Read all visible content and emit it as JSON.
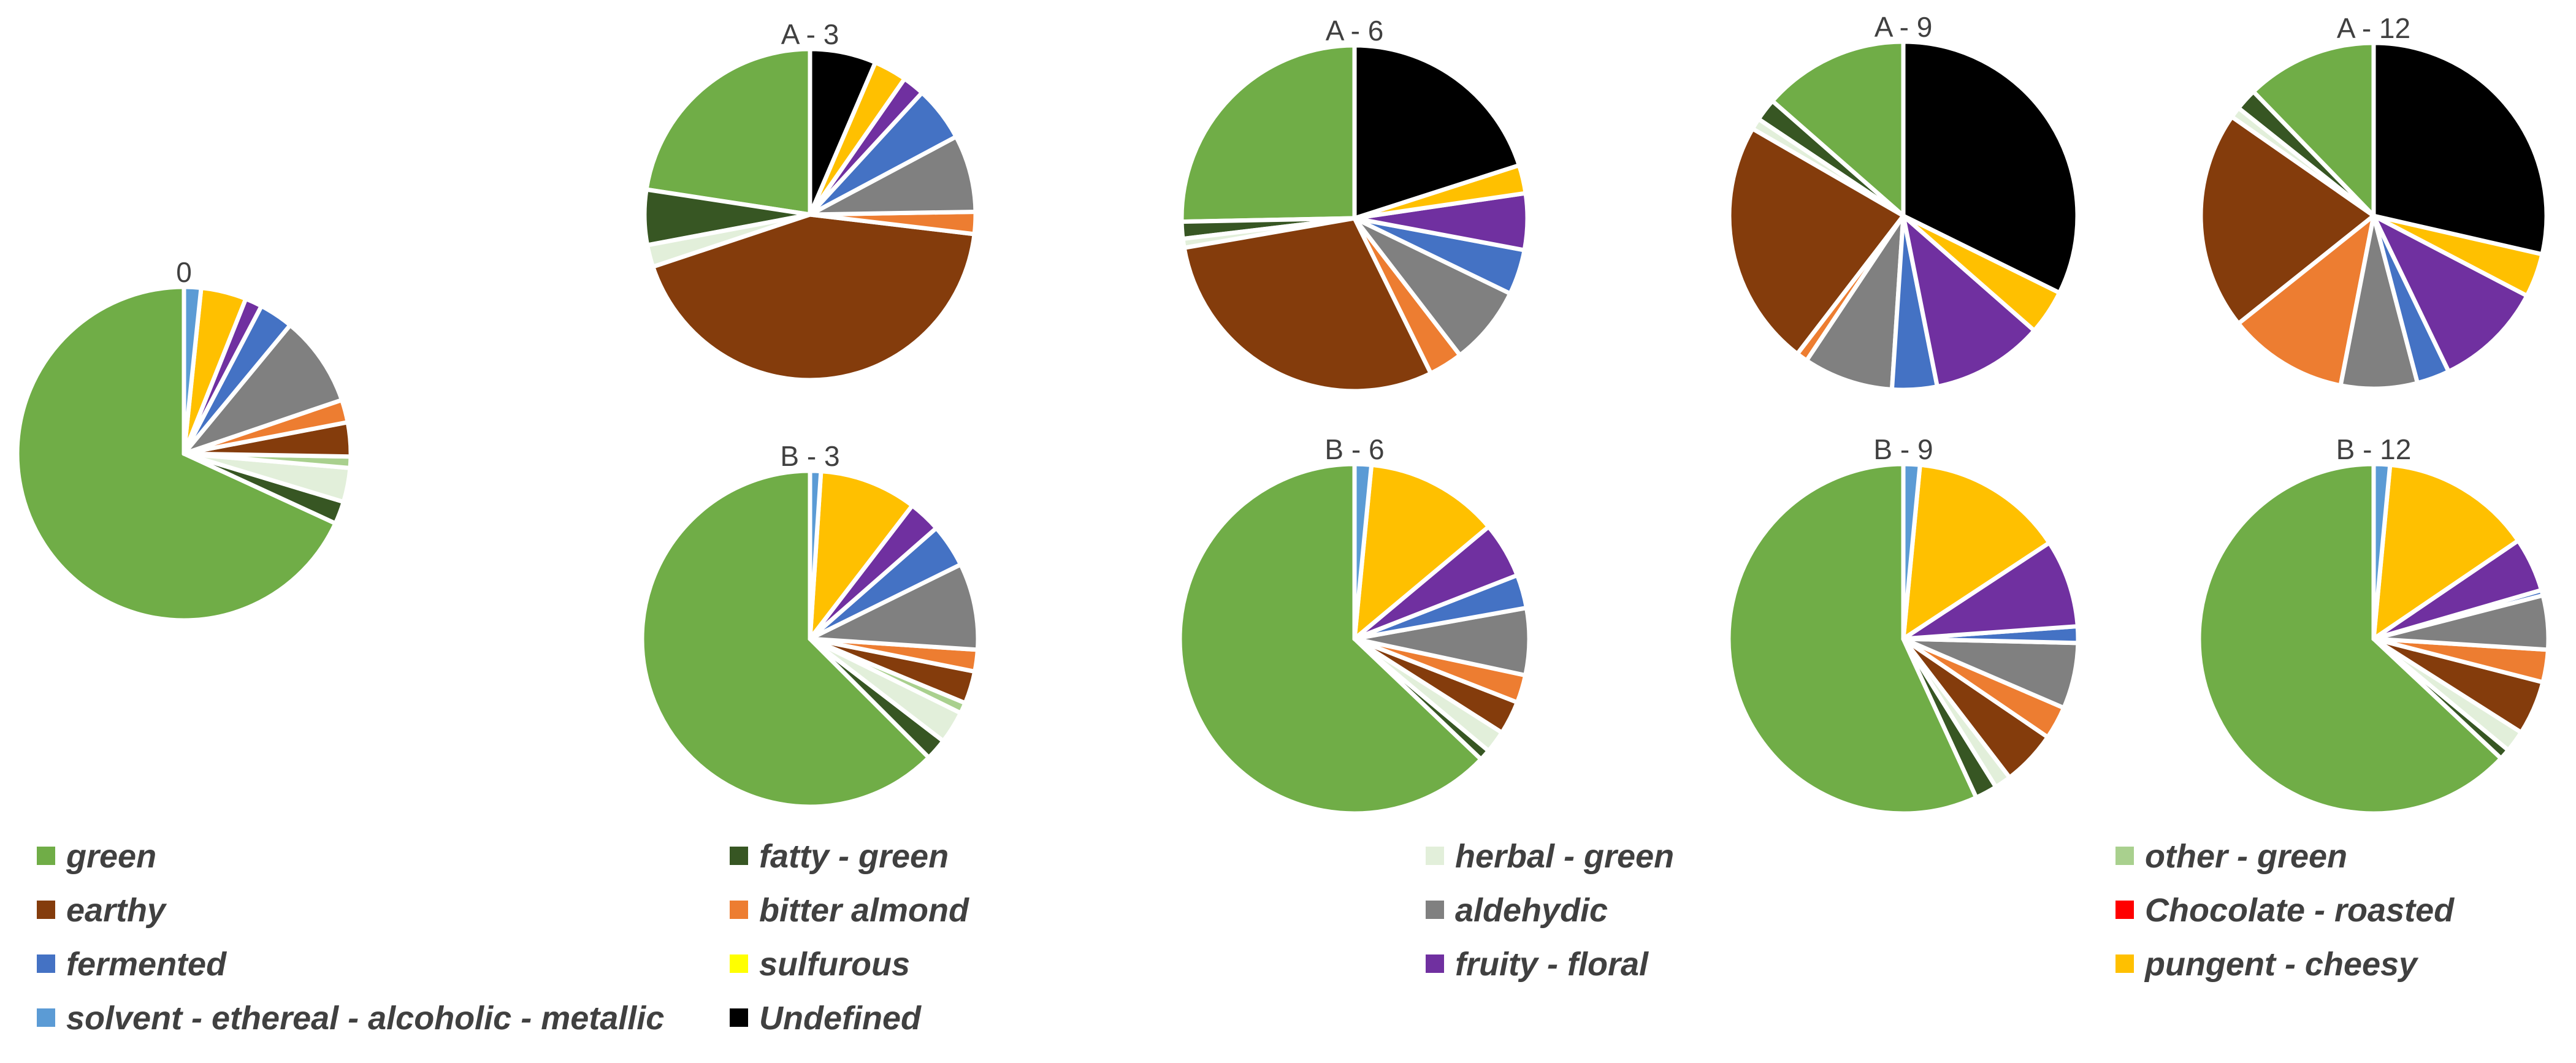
{
  "colors": {
    "green": "#70AD47",
    "fatty_green": "#375623",
    "herbal_green": "#E2EFDA",
    "other_green": "#A9D08E",
    "earthy": "#843C0C",
    "bitter_almond": "#ED7D31",
    "aldehydic": "#808080",
    "chocolate_roasted": "#FF0000",
    "fermented": "#4472C4",
    "sulfurous": "#FFFF00",
    "fruity_floral": "#7030A0",
    "pungent_cheesy": "#FFC000",
    "solvent": "#5B9BD5",
    "undefined": "#000000"
  },
  "chart_data": [
    {
      "type": "pie",
      "title": "0",
      "values": [
        62,
        2,
        3,
        1,
        3,
        2,
        8,
        0,
        3,
        0,
        1.5,
        4,
        1.5,
        0
      ]
    },
    {
      "type": "pie",
      "title": "A - 3",
      "values": [
        21,
        5,
        2,
        0,
        40,
        2,
        7,
        0,
        5,
        0,
        2,
        3,
        0,
        6
      ]
    },
    {
      "type": "pie",
      "title": "A - 6",
      "values": [
        24,
        1.5,
        0.8,
        0,
        28,
        3,
        7,
        0,
        4,
        0,
        5,
        2.5,
        0,
        19
      ]
    },
    {
      "type": "pie",
      "title": "A - 9",
      "values": [
        13,
        2,
        1,
        0,
        22,
        1,
        8,
        0,
        4,
        0,
        10,
        4,
        0,
        31
      ]
    },
    {
      "type": "pie",
      "title": "A - 12",
      "values": [
        12,
        2,
        1,
        0,
        20,
        11,
        7,
        0,
        3,
        0,
        10,
        4,
        0,
        28
      ]
    },
    {
      "type": "pie",
      "title": "B - 3",
      "values": [
        60,
        2,
        3,
        1,
        3,
        2,
        8,
        0,
        4,
        0,
        3,
        9,
        1,
        0
      ]
    },
    {
      "type": "pie",
      "title": "B - 6",
      "values": [
        61,
        1,
        2,
        0,
        3,
        2.5,
        6,
        0,
        3,
        0,
        5,
        12,
        1.5,
        0
      ]
    },
    {
      "type": "pie",
      "title": "B - 9",
      "values": [
        56,
        2,
        1.5,
        0,
        5,
        3,
        6,
        0,
        1.5,
        0,
        8,
        14,
        1.5,
        0
      ]
    },
    {
      "type": "pie",
      "title": "B - 12",
      "values": [
        63,
        1,
        2,
        0,
        5,
        3,
        5,
        0,
        0.5,
        0,
        5,
        14,
        1.5,
        0
      ]
    }
  ],
  "legend": [
    {
      "label": "green",
      "color_key": "green"
    },
    {
      "label": "fatty - green",
      "color_key": "fatty_green"
    },
    {
      "label": "herbal - green",
      "color_key": "herbal_green"
    },
    {
      "label": "other - green",
      "color_key": "other_green"
    },
    {
      "label": "earthy",
      "color_key": "earthy"
    },
    {
      "label": "bitter almond",
      "color_key": "bitter_almond"
    },
    {
      "label": "aldehydic",
      "color_key": "aldehydic"
    },
    {
      "label": "Chocolate - roasted",
      "color_key": "chocolate_roasted"
    },
    {
      "label": "fermented",
      "color_key": "fermented"
    },
    {
      "label": "sulfurous",
      "color_key": "sulfurous"
    },
    {
      "label": "fruity - floral",
      "color_key": "fruity_floral"
    },
    {
      "label": "pungent - cheesy",
      "color_key": "pungent_cheesy"
    },
    {
      "label": "solvent - ethereal - alcoholic - metallic",
      "color_key": "solvent"
    },
    {
      "label": "Undefined",
      "color_key": "undefined"
    }
  ]
}
